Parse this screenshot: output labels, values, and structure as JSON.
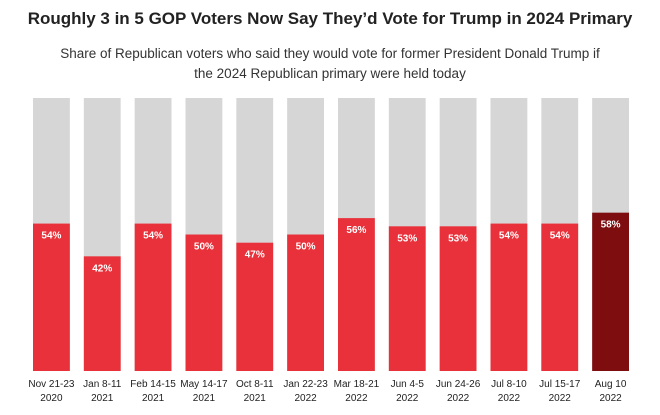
{
  "chart_data": {
    "type": "bar",
    "title": "Roughly 3 in 5 GOP Voters Now Say They’d Vote for Trump in 2024 Primary",
    "subtitle": "Share of Republican voters who said they would vote for former President Donald Trump if the 2024 Republican primary were held today",
    "categories": [
      {
        "line1": "Nov 21-23",
        "line2": "2020"
      },
      {
        "line1": "Jan 8-11",
        "line2": "2021"
      },
      {
        "line1": "Feb 14-15",
        "line2": "2021"
      },
      {
        "line1": "May 14-17",
        "line2": "2021"
      },
      {
        "line1": "Oct 8-11",
        "line2": "2021"
      },
      {
        "line1": "Jan 22-23",
        "line2": "2022"
      },
      {
        "line1": "Mar 18-21",
        "line2": "2022"
      },
      {
        "line1": "Jun 4-5",
        "line2": "2022"
      },
      {
        "line1": "Jun 24-26",
        "line2": "2022"
      },
      {
        "line1": "Jul 8-10",
        "line2": "2022"
      },
      {
        "line1": "Jul 15-17",
        "line2": "2022"
      },
      {
        "line1": "Aug 10",
        "line2": "2022"
      }
    ],
    "values": [
      54,
      42,
      54,
      50,
      47,
      50,
      56,
      53,
      53,
      54,
      54,
      58
    ],
    "value_labels": [
      "54%",
      "42%",
      "54%",
      "50%",
      "47%",
      "50%",
      "56%",
      "53%",
      "53%",
      "54%",
      "54%",
      "58%"
    ],
    "ylim": [
      0,
      100
    ],
    "grid": false,
    "colors": {
      "bar": "#e8313a",
      "highlight": "#7e0d10",
      "background_bar": "#d6d6d6"
    },
    "highlight_index": 11
  }
}
